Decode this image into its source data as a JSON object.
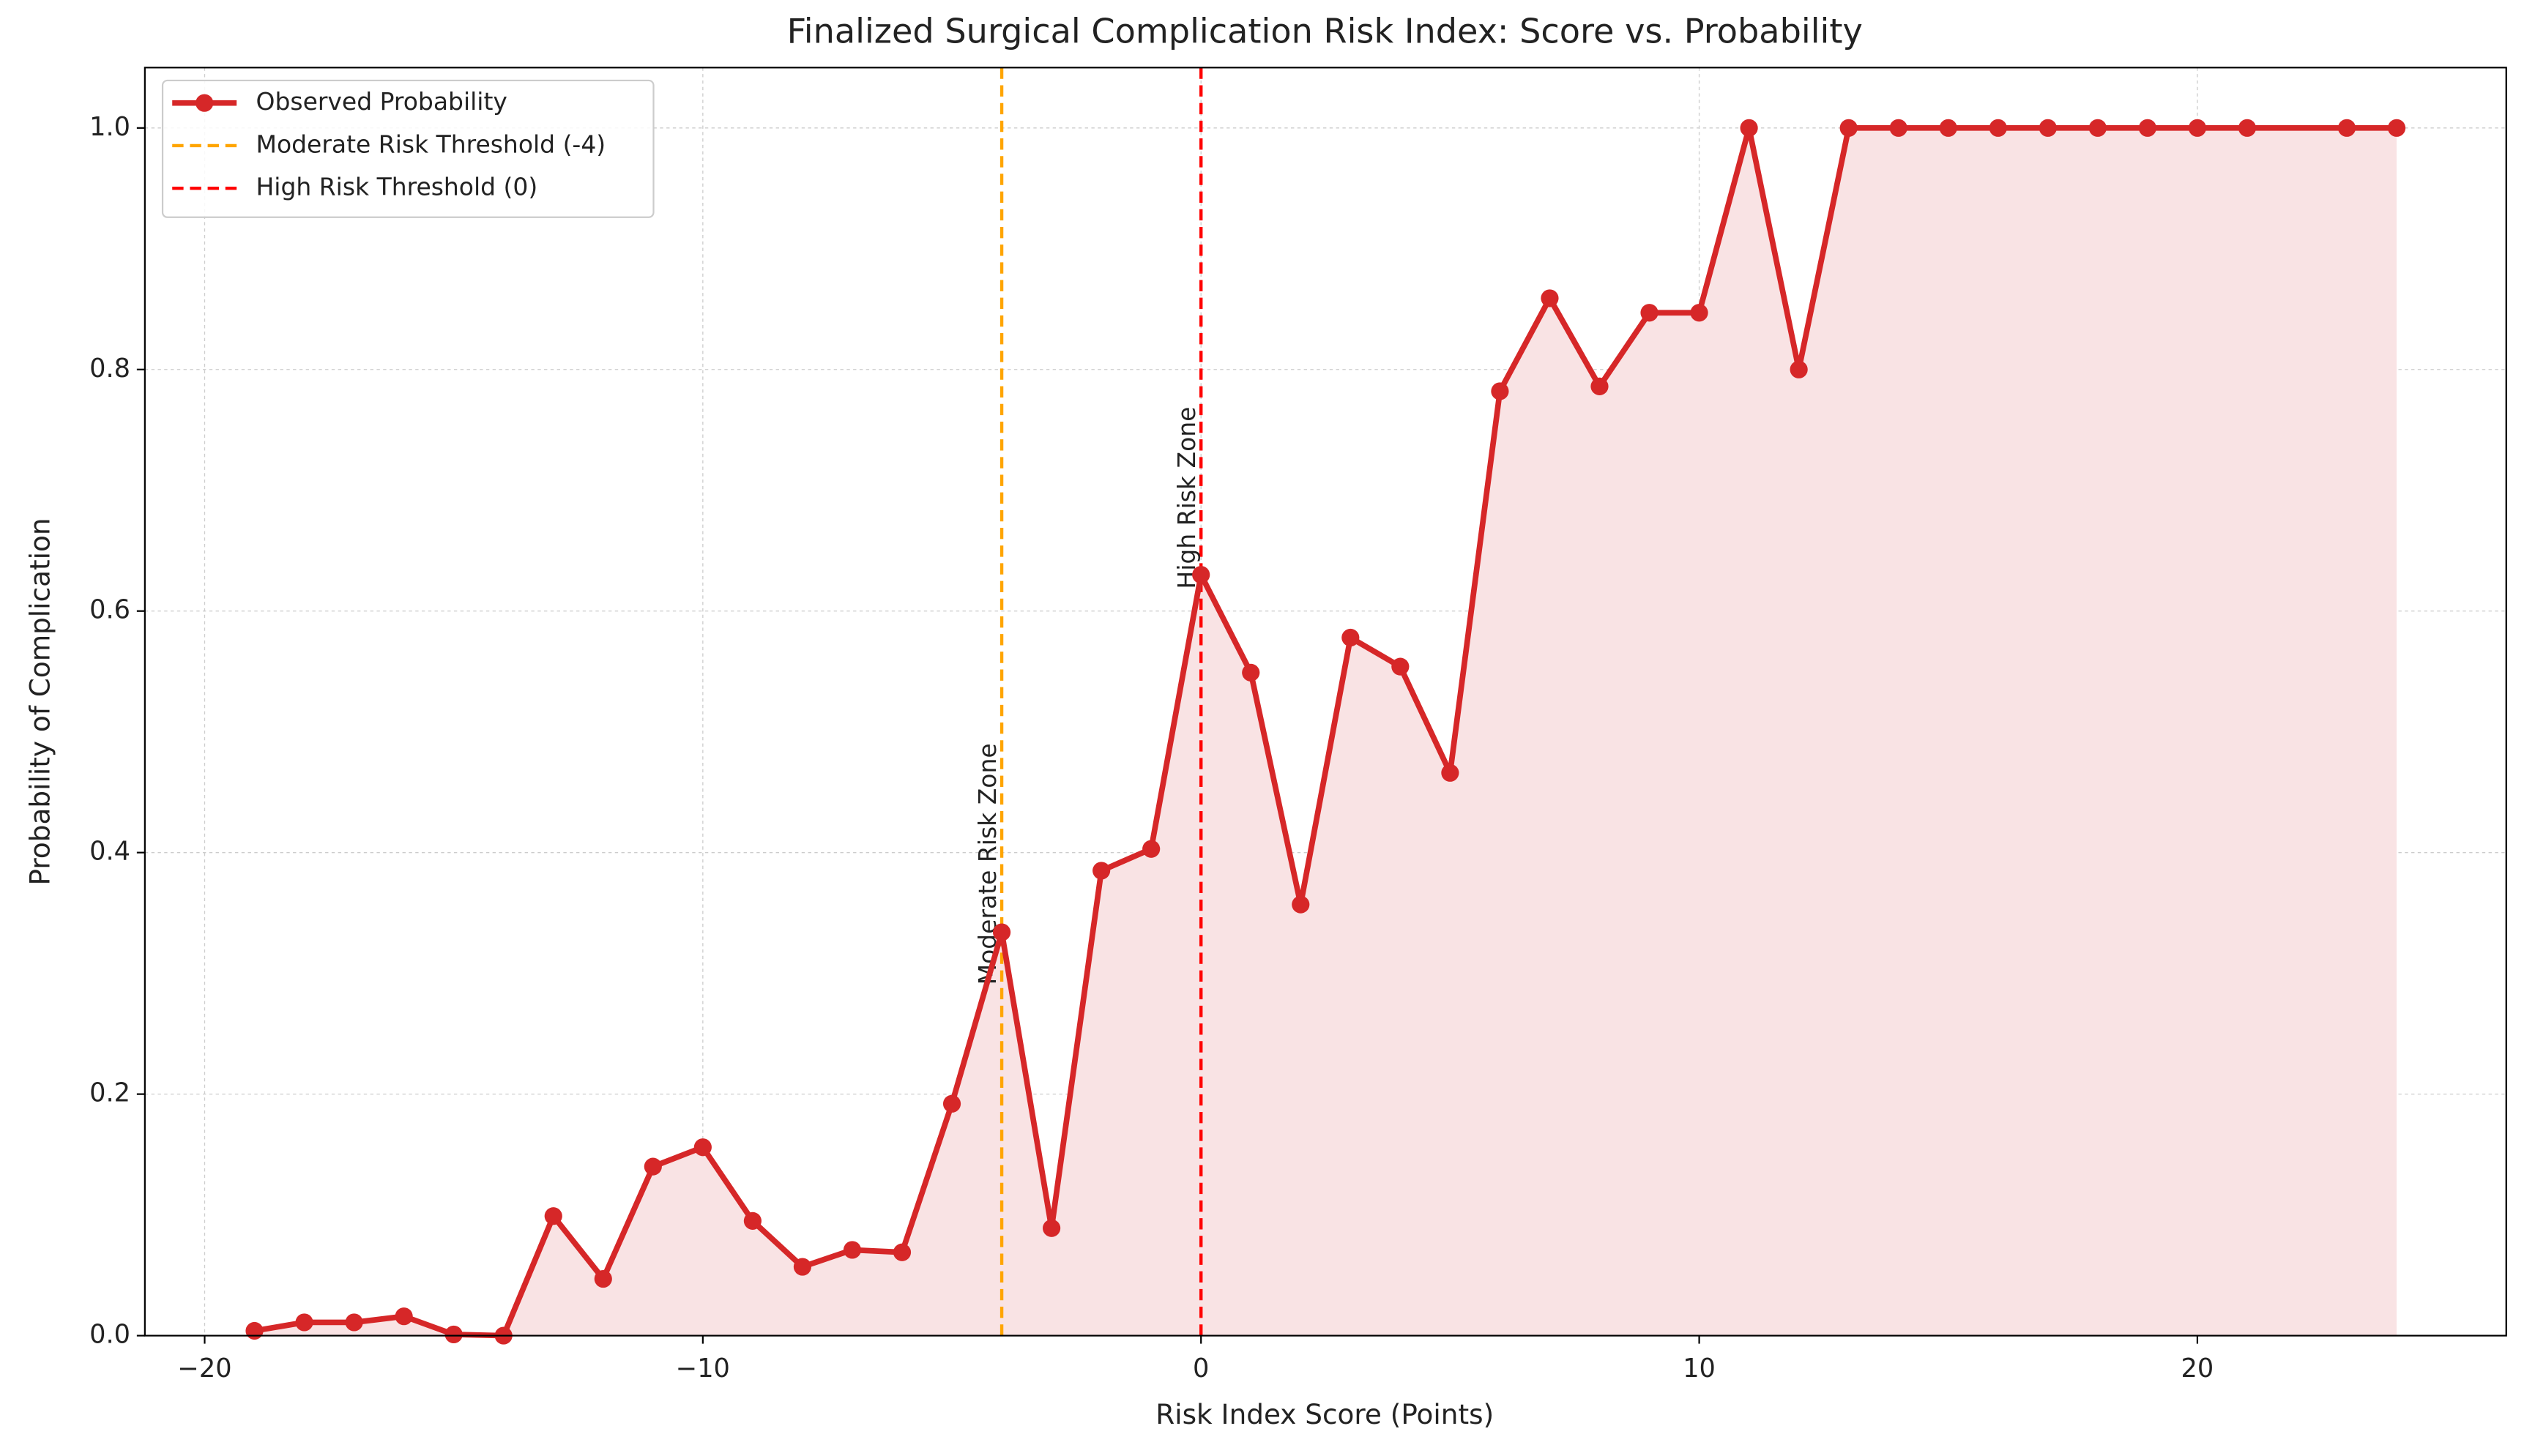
{
  "chart_data": {
    "type": "line",
    "title": "Finalized Surgical Complication Risk Index: Score vs. Probability",
    "xlabel": "Risk Index Score (Points)",
    "ylabel": "Probability of Complication",
    "series": [
      {
        "name": "Observed Probability",
        "color": "#d62728",
        "fill_color": "#f9e3e4",
        "x": [
          -19,
          -18,
          -17,
          -16,
          -15,
          -14,
          -13,
          -12,
          -11,
          -10,
          -9,
          -8,
          -7,
          -6,
          -5,
          -4,
          -3,
          -2,
          -1,
          0,
          1,
          2,
          3,
          4,
          5,
          6,
          7,
          8,
          9,
          10,
          11,
          12,
          13,
          14,
          15,
          16,
          17,
          18,
          19,
          20,
          21,
          23,
          24
        ],
        "values": [
          0.004,
          0.011,
          0.011,
          0.016,
          0.001,
          0.0,
          0.099,
          0.047,
          0.14,
          0.156,
          0.095,
          0.057,
          0.071,
          0.069,
          0.192,
          0.334,
          0.089,
          0.385,
          0.403,
          0.63,
          0.549,
          0.357,
          0.578,
          0.554,
          0.466,
          0.782,
          0.859,
          0.786,
          0.847,
          0.847,
          1.0,
          0.8,
          1.0,
          1.0,
          1.0,
          1.0,
          1.0,
          1.0,
          1.0,
          1.0,
          1.0,
          1.0,
          1.0
        ]
      }
    ],
    "thresholds": [
      {
        "name": "Moderate Risk Threshold (-4)",
        "x": -4,
        "color": "#ffa500",
        "annotation": "Moderate Risk Zone"
      },
      {
        "name": "High Risk Threshold (0)",
        "x": 0,
        "color": "#ff0000",
        "annotation": "High Risk Zone"
      }
    ],
    "xlim": [
      -21.2,
      26.2
    ],
    "ylim": [
      0,
      1.05
    ],
    "xticks": [
      {
        "value": -20,
        "label": "−20"
      },
      {
        "value": -10,
        "label": "−10"
      },
      0,
      10,
      20
    ],
    "yticks": [
      {
        "value": 0,
        "label": "0.0"
      },
      0.2,
      0.4,
      0.6,
      0.8,
      {
        "value": 1,
        "label": "1.0"
      }
    ],
    "grid": true,
    "legend": "upper left"
  }
}
